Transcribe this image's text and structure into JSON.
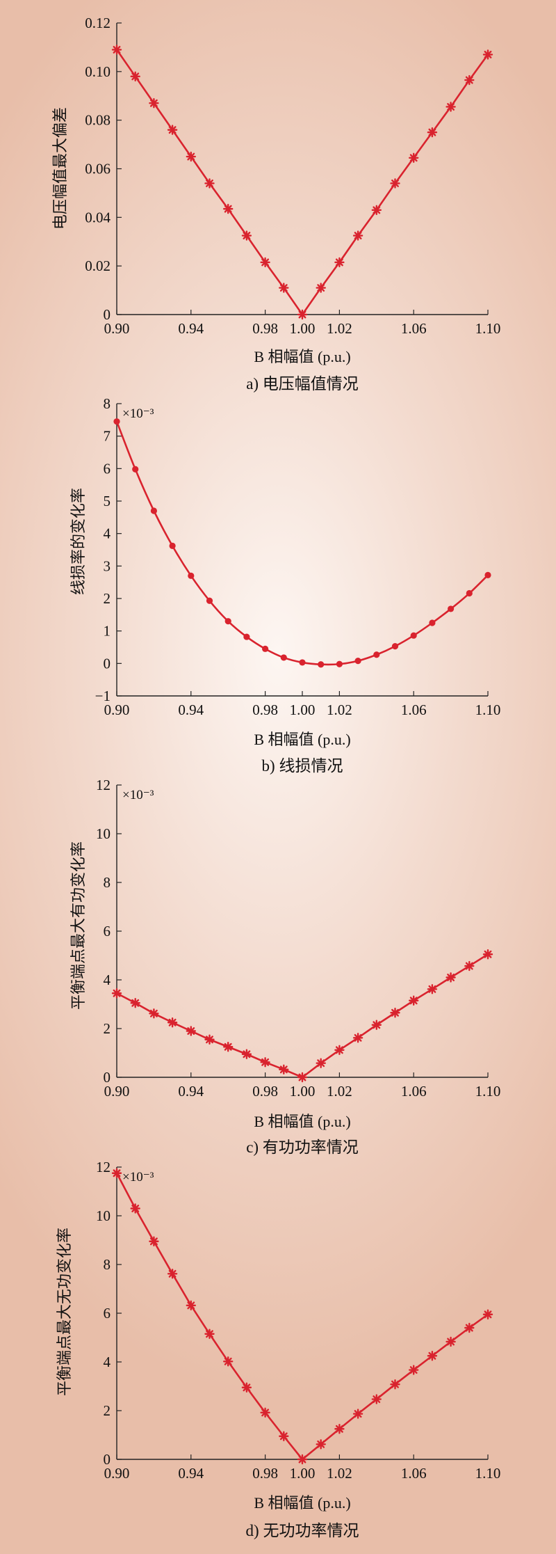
{
  "chart_data": [
    {
      "type": "line",
      "caption": "a) 电压幅值情况",
      "xlabel": "B 相幅值 (p.u.)",
      "ylabel": "电压幅值最大偏差",
      "scale_label": "",
      "marker": "star",
      "xlim": [
        0.9,
        1.1
      ],
      "ylim": [
        0,
        0.12
      ],
      "xticks": [
        "0.90",
        "0.94",
        "0.98",
        "1.00",
        "1.02",
        "1.06",
        "1.10"
      ],
      "yticks": [
        "0",
        "0.02",
        "0.04",
        "0.06",
        "0.08",
        "0.10",
        "0.12"
      ],
      "x": [
        0.9,
        0.91,
        0.92,
        0.93,
        0.94,
        0.95,
        0.96,
        0.97,
        0.98,
        0.99,
        1.0,
        1.01,
        1.02,
        1.03,
        1.04,
        1.05,
        1.06,
        1.07,
        1.08,
        1.09,
        1.1
      ],
      "values": [
        0.109,
        0.098,
        0.087,
        0.076,
        0.065,
        0.054,
        0.0435,
        0.0325,
        0.0215,
        0.011,
        0,
        0.011,
        0.0215,
        0.0325,
        0.043,
        0.054,
        0.0645,
        0.075,
        0.0855,
        0.0965,
        0.107
      ],
      "color": "#d9232e"
    },
    {
      "type": "line",
      "caption": "b) 线损情况",
      "xlabel": "B 相幅值 (p.u.)",
      "ylabel": "线损率的变化率",
      "scale_label": "×10⁻³",
      "marker": "dot",
      "xlim": [
        0.9,
        1.1
      ],
      "ylim": [
        -1,
        8
      ],
      "xticks": [
        "0.90",
        "0.94",
        "0.98",
        "1.00",
        "1.02",
        "1.06",
        "1.10"
      ],
      "yticks": [
        "−1",
        "0",
        "1",
        "2",
        "3",
        "4",
        "5",
        "6",
        "7",
        "8"
      ],
      "x": [
        0.9,
        0.91,
        0.92,
        0.93,
        0.94,
        0.95,
        0.96,
        0.97,
        0.98,
        0.99,
        1.0,
        1.01,
        1.02,
        1.03,
        1.04,
        1.05,
        1.06,
        1.07,
        1.08,
        1.09,
        1.1
      ],
      "values": [
        7.45,
        5.98,
        4.7,
        3.62,
        2.7,
        1.93,
        1.3,
        0.82,
        0.45,
        0.18,
        0.03,
        -0.03,
        -0.02,
        0.08,
        0.27,
        0.53,
        0.86,
        1.25,
        1.68,
        2.16,
        2.72
      ],
      "color": "#d9232e"
    },
    {
      "type": "line",
      "caption": "c) 有功功率情况",
      "xlabel": "B 相幅值 (p.u.)",
      "ylabel": "平衡端点最大有功变化率",
      "scale_label": "×10⁻³",
      "marker": "star",
      "xlim": [
        0.9,
        1.1
      ],
      "ylim": [
        0,
        12
      ],
      "xticks": [
        "0.90",
        "0.94",
        "0.98",
        "1.00",
        "1.02",
        "1.06",
        "1.10"
      ],
      "yticks": [
        "0",
        "2",
        "4",
        "6",
        "8",
        "10",
        "12"
      ],
      "x": [
        0.9,
        0.91,
        0.92,
        0.93,
        0.94,
        0.95,
        0.96,
        0.97,
        0.98,
        0.99,
        1.0,
        1.01,
        1.02,
        1.03,
        1.04,
        1.05,
        1.06,
        1.07,
        1.08,
        1.09,
        1.1
      ],
      "values": [
        3.45,
        3.05,
        2.62,
        2.25,
        1.9,
        1.55,
        1.25,
        0.95,
        0.62,
        0.32,
        0,
        0.58,
        1.12,
        1.62,
        2.15,
        2.65,
        3.15,
        3.62,
        4.1,
        4.57,
        5.05
      ],
      "color": "#d9232e"
    },
    {
      "type": "line",
      "caption": "d) 无功功率情况",
      "xlabel": "B 相幅值 (p.u.)",
      "ylabel": "平衡端点最大无功变化率",
      "scale_label": "×10⁻³",
      "marker": "star",
      "xlim": [
        0.9,
        1.1
      ],
      "ylim": [
        0,
        12
      ],
      "xticks": [
        "0.90",
        "0.94",
        "0.98",
        "1.00",
        "1.02",
        "1.06",
        "1.10"
      ],
      "yticks": [
        "0",
        "2",
        "4",
        "6",
        "8",
        "10",
        "12"
      ],
      "x": [
        0.9,
        0.91,
        0.92,
        0.93,
        0.94,
        0.95,
        0.96,
        0.97,
        0.98,
        0.99,
        1.0,
        1.01,
        1.02,
        1.03,
        1.04,
        1.05,
        1.06,
        1.07,
        1.08,
        1.09,
        1.1
      ],
      "values": [
        11.75,
        10.3,
        8.95,
        7.62,
        6.32,
        5.15,
        4.02,
        2.95,
        1.92,
        0.95,
        0,
        0.62,
        1.25,
        1.87,
        2.47,
        3.08,
        3.67,
        4.25,
        4.83,
        5.4,
        5.95
      ],
      "color": "#d9232e"
    }
  ]
}
